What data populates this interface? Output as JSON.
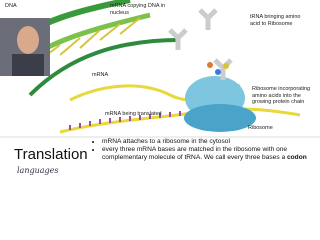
{
  "diagram": {
    "labels": {
      "dna": "DNA",
      "mrna_copying": "mRNA copying DNA in nucleus",
      "trna_bringing": "tRNA bringing amino acid to Ribosome",
      "mrna": "mRNA",
      "ribosome_incorporating": "Ribosome incorporating amino acids into the growing protein chain",
      "mrna_translated": "mRNA being translated",
      "ribosome": "Ribosome"
    }
  },
  "slide": {
    "title": "Translation",
    "handwriting": "languages",
    "bullets": [
      {
        "text": "mRNA attaches to a ribosome in the cytosol"
      },
      {
        "text": "every three mRNA bases are matched in the ribosome with one complementary molecule of tRNA. We call every three bases a",
        "bold": "codon"
      }
    ]
  }
}
